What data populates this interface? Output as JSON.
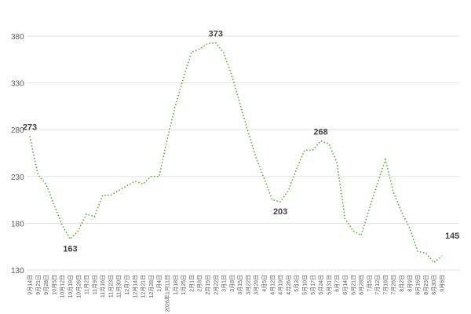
{
  "chart_data": {
    "type": "line",
    "categories": [
      "9月14日",
      "9月21日",
      "9月28日",
      "10月5日",
      "10月12日",
      "10月19日",
      "10月26日",
      "11月2日",
      "11月9日",
      "11月16日",
      "11月23日",
      "11月30日",
      "12月7日",
      "12月14日",
      "12月21日",
      "12月28日",
      "1月4日",
      "2026年1月11日",
      "1月18日",
      "1月25日",
      "2月1日",
      "2月8日",
      "2月15日",
      "2月22日",
      "3月1日",
      "3月8日",
      "3月15日",
      "3月22日",
      "3月29日",
      "4月5日",
      "4月12日",
      "4月19日",
      "4月26日",
      "5月3日",
      "5月10日",
      "5月17日",
      "5月24日",
      "5月31日",
      "6月7日",
      "6月14日",
      "6月21日",
      "6月28日",
      "7月5日",
      "7月12日",
      "7月19日",
      "7月26日",
      "8月2日",
      "8月9日",
      "8月16日",
      "8月23日",
      "8月30日",
      "9月6日"
    ],
    "values": [
      273,
      232,
      222,
      200,
      178,
      163,
      172,
      190,
      187,
      210,
      210,
      215,
      220,
      225,
      222,
      230,
      230,
      270,
      305,
      335,
      363,
      366,
      372,
      373,
      362,
      338,
      308,
      278,
      250,
      228,
      205,
      203,
      215,
      238,
      258,
      258,
      268,
      265,
      245,
      185,
      172,
      167,
      195,
      222,
      248,
      213,
      192,
      175,
      150,
      148,
      138,
      145
    ],
    "value_labels": [
      "273",
      null,
      null,
      null,
      null,
      "163",
      null,
      null,
      null,
      null,
      null,
      null,
      null,
      null,
      null,
      null,
      null,
      null,
      null,
      null,
      null,
      null,
      null,
      "373",
      null,
      null,
      null,
      null,
      null,
      null,
      null,
      "203",
      null,
      null,
      null,
      null,
      "268",
      null,
      null,
      null,
      null,
      null,
      null,
      null,
      null,
      null,
      null,
      null,
      null,
      null,
      null,
      "145"
    ],
    "color": "#5aa832",
    "ylim": [
      130,
      380
    ],
    "yticks": [
      130,
      180,
      230,
      280,
      330,
      380
    ],
    "grid": true
  }
}
